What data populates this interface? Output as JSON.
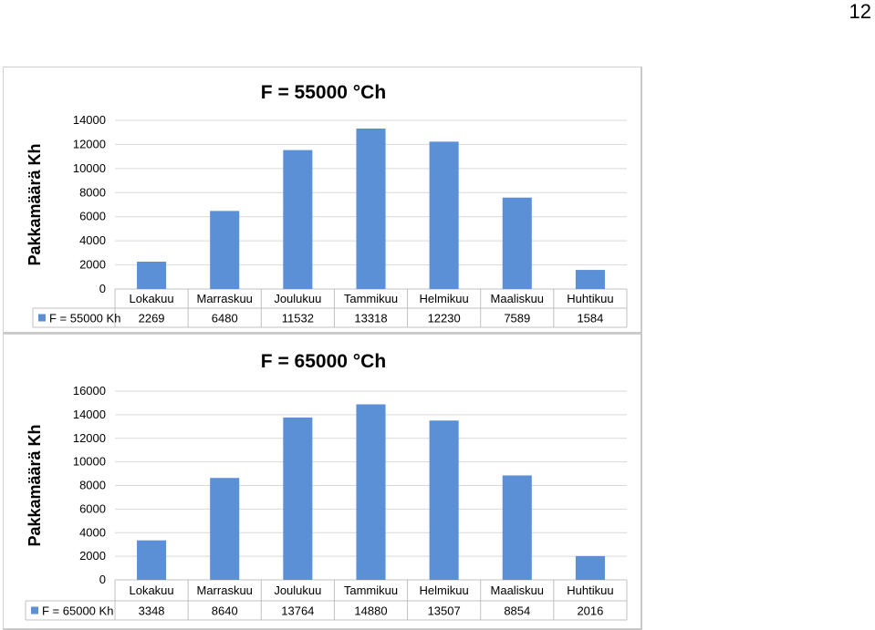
{
  "page": {
    "number": "12"
  },
  "colors": {
    "bar": "#5b8fd6",
    "grid": "#d9d9d9"
  },
  "chart_data": [
    {
      "type": "bar",
      "title": "F = 55000 °Ch",
      "xlabel": "",
      "ylabel": "Pakkamäärä Kh",
      "ylim": [
        0,
        14000
      ],
      "yticks": [
        0,
        2000,
        4000,
        6000,
        8000,
        10000,
        12000,
        14000
      ],
      "grid": true,
      "legend": "data-table",
      "categories": [
        "Lokakuu",
        "Marraskuu",
        "Joulukuu",
        "Tammikuu",
        "Helmikuu",
        "Maaliskuu",
        "Huhtikuu"
      ],
      "series": [
        {
          "name": "F = 55000 Kh",
          "values": [
            2269,
            6480,
            11532,
            13318,
            12230,
            7589,
            1584
          ]
        }
      ]
    },
    {
      "type": "bar",
      "title": "F = 65000 °Ch",
      "xlabel": "",
      "ylabel": "Pakkamäärä Kh",
      "ylim": [
        0,
        16000
      ],
      "yticks": [
        0,
        2000,
        4000,
        6000,
        8000,
        10000,
        12000,
        14000,
        16000
      ],
      "grid": true,
      "legend": "data-table",
      "categories": [
        "Lokakuu",
        "Marraskuu",
        "Joulukuu",
        "Tammikuu",
        "Helmikuu",
        "Maaliskuu",
        "Huhtikuu"
      ],
      "series": [
        {
          "name": "F = 65000 Kh",
          "values": [
            3348,
            8640,
            13764,
            14880,
            13507,
            8854,
            2016
          ]
        }
      ]
    }
  ]
}
